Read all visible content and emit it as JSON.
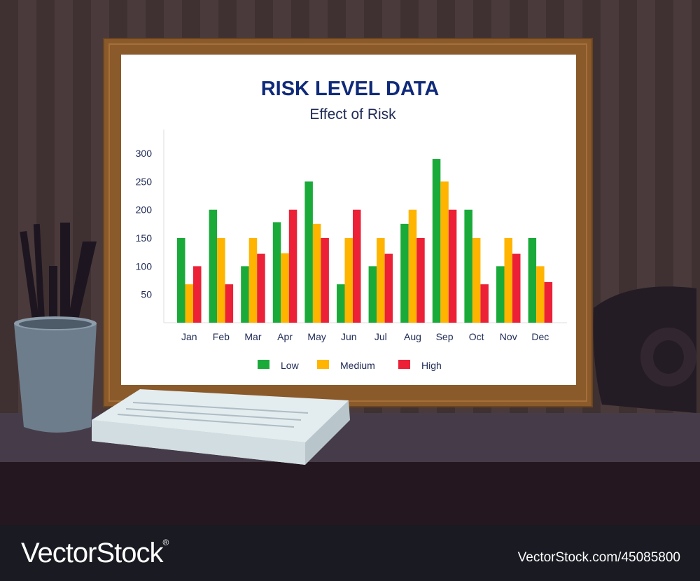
{
  "chart_data": {
    "type": "bar",
    "title": "RISK LEVEL DATA",
    "subtitle": "Effect of Risk",
    "categories": [
      "Jan",
      "Feb",
      "Mar",
      "Apr",
      "May",
      "Jun",
      "Jul",
      "Aug",
      "Sep",
      "Oct",
      "Nov",
      "Dec"
    ],
    "yticks": [
      "50",
      "100",
      "150",
      "200",
      "250",
      "300"
    ],
    "ylim": [
      0,
      300
    ],
    "grid": false,
    "legend_position": "bottom",
    "series": [
      {
        "name": "Low",
        "color": "#1aaa3a",
        "values": [
          150,
          200,
          100,
          178,
          250,
          68,
          100,
          175,
          290,
          200,
          100,
          150
        ]
      },
      {
        "name": "Medium",
        "color": "#ffb400",
        "values": [
          68,
          150,
          150,
          123,
          175,
          150,
          150,
          200,
          250,
          150,
          150,
          100
        ]
      },
      {
        "name": "High",
        "color": "#ec2137",
        "values": [
          100,
          68,
          122,
          200,
          150,
          200,
          122,
          150,
          200,
          68,
          122,
          72
        ]
      }
    ]
  },
  "watermark": {
    "brand": "VectorStock",
    "reg": "®",
    "id": "VectorStock.com/45085800"
  }
}
